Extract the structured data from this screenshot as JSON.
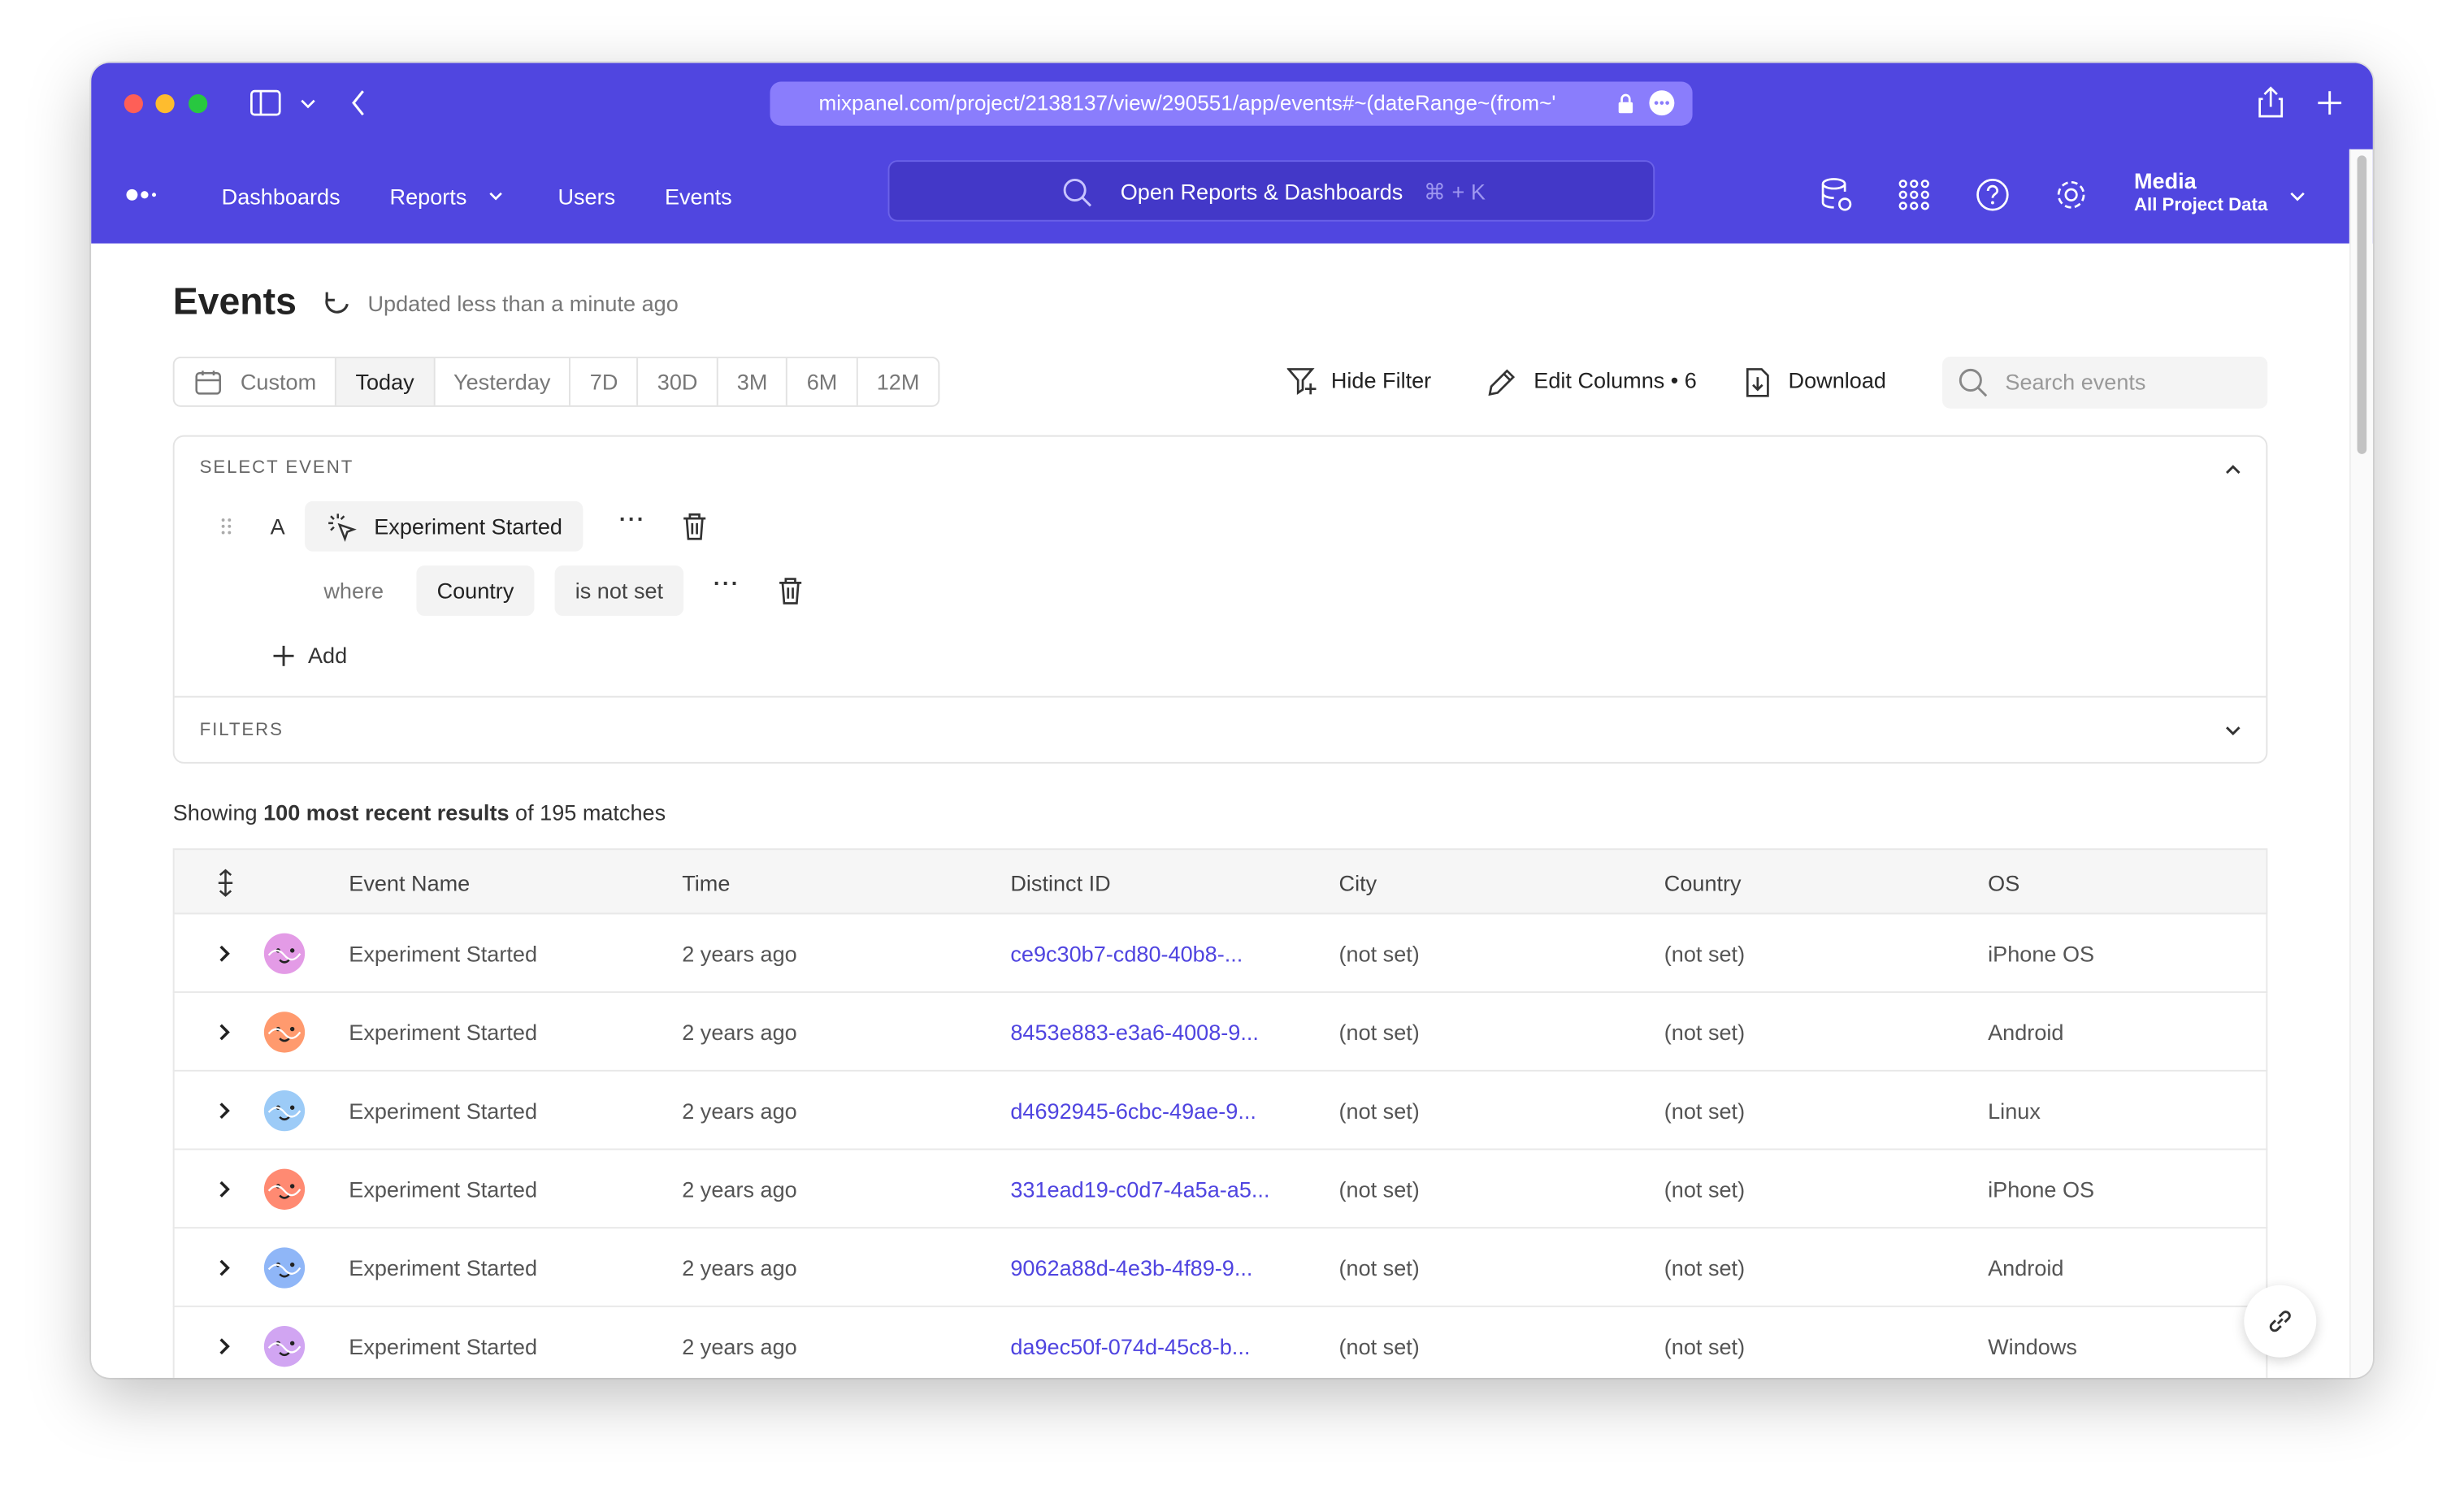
{
  "browser": {
    "url": "mixpanel.com/project/2138137/view/290551/app/events#~(dateRange~(from~'",
    "traffic_light_colors": [
      "#fe5f57",
      "#febc2e",
      "#28c840"
    ]
  },
  "nav": {
    "items": [
      "Dashboards",
      "Reports",
      "Users",
      "Events"
    ],
    "search_placeholder": "Open Reports & Dashboards",
    "search_shortcut": "⌘ + K",
    "project_name": "Media",
    "project_scope": "All Project Data",
    "brand_color": "#5046e0"
  },
  "page": {
    "title": "Events",
    "updated": "Updated less than a minute ago"
  },
  "date_tabs": [
    {
      "label": "Custom"
    },
    {
      "label": "Today",
      "active": true
    },
    {
      "label": "Yesterday"
    },
    {
      "label": "7D"
    },
    {
      "label": "30D"
    },
    {
      "label": "3M"
    },
    {
      "label": "6M"
    },
    {
      "label": "12M"
    }
  ],
  "toolbar": {
    "hide_filter": "Hide Filter",
    "edit_columns": "Edit Columns • 6",
    "download": "Download",
    "search_placeholder": "Search events"
  },
  "select_event": {
    "heading": "SELECT EVENT",
    "letter": "A",
    "event": "Experiment Started",
    "where": "where",
    "property": "Country",
    "operator": "is not set",
    "add": "Add",
    "filters_heading": "FILTERS"
  },
  "summary": {
    "prefix": "Showing ",
    "bold": "100 most recent results",
    "suffix": " of 195 matches"
  },
  "table": {
    "columns": [
      "Event Name",
      "Time",
      "Distinct ID",
      "City",
      "Country",
      "OS"
    ],
    "rows": [
      {
        "event": "Experiment Started",
        "time": "2 years ago",
        "distinct_id": "ce9c30b7-cd80-40b8-...",
        "city": "(not set)",
        "country": "(not set)",
        "os": "iPhone OS",
        "avatar_color": "#e39be6"
      },
      {
        "event": "Experiment Started",
        "time": "2 years ago",
        "distinct_id": "8453e883-e3a6-4008-9...",
        "city": "(not set)",
        "country": "(not set)",
        "os": "Android",
        "avatar_color": "#ff9a6e"
      },
      {
        "event": "Experiment Started",
        "time": "2 years ago",
        "distinct_id": "d4692945-6cbc-49ae-9...",
        "city": "(not set)",
        "country": "(not set)",
        "os": "Linux",
        "avatar_color": "#9ccbf7"
      },
      {
        "event": "Experiment Started",
        "time": "2 years ago",
        "distinct_id": "331ead19-c0d7-4a5a-a5...",
        "city": "(not set)",
        "country": "(not set)",
        "os": "iPhone OS",
        "avatar_color": "#ff8a72"
      },
      {
        "event": "Experiment Started",
        "time": "2 years ago",
        "distinct_id": "9062a88d-4e3b-4f89-9...",
        "city": "(not set)",
        "country": "(not set)",
        "os": "Android",
        "avatar_color": "#8fb6f7"
      },
      {
        "event": "Experiment Started",
        "time": "2 years ago",
        "distinct_id": "da9ec50f-074d-45c8-b...",
        "city": "(not set)",
        "country": "(not set)",
        "os": "Windows",
        "avatar_color": "#d1a5f2"
      }
    ]
  }
}
